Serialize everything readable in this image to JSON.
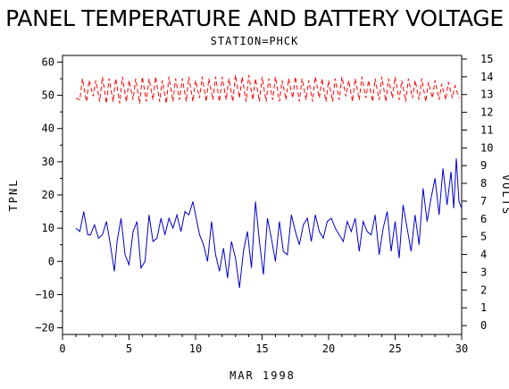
{
  "chart_data": {
    "type": "line",
    "title": "PANEL TEMPERATURE AND BATTERY VOLTAGE",
    "subtitle": "STATION=PHCK",
    "xlabel": "MAR 1998",
    "ylabel_left": "TPNL",
    "ylabel_right": "VOLTS",
    "xlim": [
      0,
      30
    ],
    "ylim_left": [
      -22,
      62
    ],
    "ylim_right": [
      -0.5,
      15.2
    ],
    "x_ticks": [
      0,
      5,
      10,
      15,
      20,
      25,
      30
    ],
    "y_left_ticks": [
      -20,
      -10,
      0,
      10,
      20,
      30,
      40,
      50,
      60
    ],
    "y_right_ticks": [
      0,
      1,
      2,
      3,
      4,
      5,
      6,
      7,
      8,
      9,
      10,
      11,
      12,
      13,
      14,
      15
    ],
    "grid": false,
    "colors": {
      "temperature": "#0000cc",
      "voltage": "#ff0000",
      "axes": "#000000"
    },
    "series": [
      {
        "axis": "left",
        "style": "solid",
        "color": "#0000cc",
        "x": [
          1.0,
          1.3,
          1.6,
          1.9,
          2.1,
          2.4,
          2.7,
          3.0,
          3.3,
          3.6,
          3.9,
          4.1,
          4.4,
          4.7,
          5.0,
          5.3,
          5.6,
          5.9,
          6.2,
          6.5,
          6.8,
          7.1,
          7.4,
          7.7,
          8.0,
          8.3,
          8.6,
          8.9,
          9.2,
          9.5,
          9.8,
          10.0,
          10.3,
          10.6,
          10.9,
          11.2,
          11.5,
          11.8,
          12.1,
          12.4,
          12.7,
          13.0,
          13.3,
          13.6,
          13.9,
          14.2,
          14.5,
          14.8,
          15.1,
          15.4,
          15.7,
          16.0,
          16.3,
          16.6,
          16.9,
          17.2,
          17.5,
          17.8,
          18.1,
          18.4,
          18.7,
          19.0,
          19.3,
          19.6,
          19.9,
          20.2,
          20.5,
          20.8,
          21.1,
          21.4,
          21.7,
          22.0,
          22.3,
          22.6,
          22.9,
          23.2,
          23.5,
          23.8,
          24.1,
          24.4,
          24.7,
          25.0,
          25.3,
          25.6,
          25.9,
          26.2,
          26.5,
          26.8,
          27.1,
          27.4,
          27.7,
          28.0,
          28.3,
          28.6,
          28.9,
          29.2,
          29.4,
          29.6,
          29.8,
          30.0
        ],
        "values": [
          10,
          9,
          15,
          8,
          8,
          11,
          7,
          8,
          12,
          5,
          -3,
          6,
          13,
          2,
          -1,
          9,
          12,
          -2,
          0,
          14,
          6,
          7,
          13,
          8,
          13,
          10,
          14,
          9,
          15,
          14,
          18,
          14,
          8,
          5,
          0,
          12,
          2,
          -3,
          4,
          -5,
          6,
          1,
          -8,
          3,
          9,
          -2,
          18,
          6,
          -4,
          13,
          7,
          0,
          12,
          3,
          2,
          14,
          9,
          5,
          11,
          13,
          6,
          14,
          9,
          7,
          12,
          13,
          10,
          8,
          6,
          12,
          9,
          13,
          3,
          12,
          9,
          8,
          14,
          2,
          10,
          15,
          3,
          12,
          1,
          17,
          10,
          3,
          14,
          5,
          22,
          12,
          19,
          25,
          14,
          28,
          17,
          27,
          16,
          31,
          18,
          16
        ]
      },
      {
        "axis": "right",
        "style": "dashed",
        "color": "#ff0000",
        "x": [
          1.0,
          1.3,
          1.5,
          1.8,
          2.0,
          2.3,
          2.5,
          2.8,
          3.0,
          3.3,
          3.5,
          3.8,
          4.0,
          4.3,
          4.5,
          4.8,
          5.0,
          5.3,
          5.5,
          5.8,
          6.0,
          6.3,
          6.5,
          6.8,
          7.0,
          7.3,
          7.5,
          7.8,
          8.0,
          8.3,
          8.5,
          8.8,
          9.0,
          9.3,
          9.5,
          9.8,
          10.0,
          10.3,
          10.5,
          10.8,
          11.0,
          11.3,
          11.5,
          11.8,
          12.0,
          12.3,
          12.5,
          12.8,
          13.0,
          13.3,
          13.5,
          13.8,
          14.0,
          14.3,
          14.5,
          14.8,
          15.0,
          15.3,
          15.5,
          15.8,
          16.0,
          16.3,
          16.5,
          16.8,
          17.0,
          17.3,
          17.5,
          17.8,
          18.0,
          18.3,
          18.5,
          18.8,
          19.0,
          19.3,
          19.5,
          19.8,
          20.0,
          20.3,
          20.5,
          20.8,
          21.0,
          21.3,
          21.5,
          21.8,
          22.0,
          22.3,
          22.5,
          22.8,
          23.0,
          23.3,
          23.5,
          23.8,
          24.0,
          24.3,
          24.5,
          24.8,
          25.0,
          25.3,
          25.5,
          25.8,
          26.0,
          26.3,
          26.5,
          26.8,
          27.0,
          27.3,
          27.5,
          27.8,
          28.0,
          28.3,
          28.5,
          28.8,
          29.0,
          29.3,
          29.5,
          29.8
        ],
        "values": [
          12.8,
          12.7,
          13.9,
          12.6,
          13.8,
          12.9,
          13.8,
          12.6,
          14.0,
          12.5,
          13.9,
          12.6,
          13.9,
          12.5,
          14.0,
          12.6,
          13.8,
          12.7,
          13.9,
          12.5,
          14.0,
          12.6,
          13.9,
          12.7,
          14.0,
          12.6,
          13.8,
          12.5,
          14.0,
          12.6,
          13.9,
          12.7,
          13.9,
          12.6,
          14.0,
          12.6,
          13.8,
          12.8,
          14.0,
          12.6,
          13.9,
          12.7,
          14.0,
          12.6,
          14.0,
          12.7,
          13.9,
          12.6,
          14.1,
          12.8,
          14.0,
          12.6,
          14.1,
          12.7,
          13.9,
          12.6,
          14.0,
          12.6,
          13.9,
          12.7,
          14.0,
          12.6,
          13.8,
          12.7,
          13.9,
          12.8,
          14.0,
          12.6,
          13.9,
          12.7,
          13.8,
          12.6,
          14.0,
          12.8,
          13.9,
          12.6,
          13.8,
          12.6,
          13.9,
          12.7,
          14.0,
          12.9,
          13.8,
          12.6,
          13.9,
          12.7,
          14.0,
          12.8,
          13.8,
          12.6,
          13.9,
          12.7,
          14.0,
          12.6,
          13.9,
          12.8,
          14.0,
          12.7,
          13.8,
          12.6,
          13.9,
          12.8,
          13.8,
          12.7,
          13.9,
          12.6,
          13.7,
          12.8,
          13.8,
          12.7,
          13.6,
          12.7,
          13.7,
          12.8,
          13.5,
          12.8
        ]
      }
    ]
  }
}
